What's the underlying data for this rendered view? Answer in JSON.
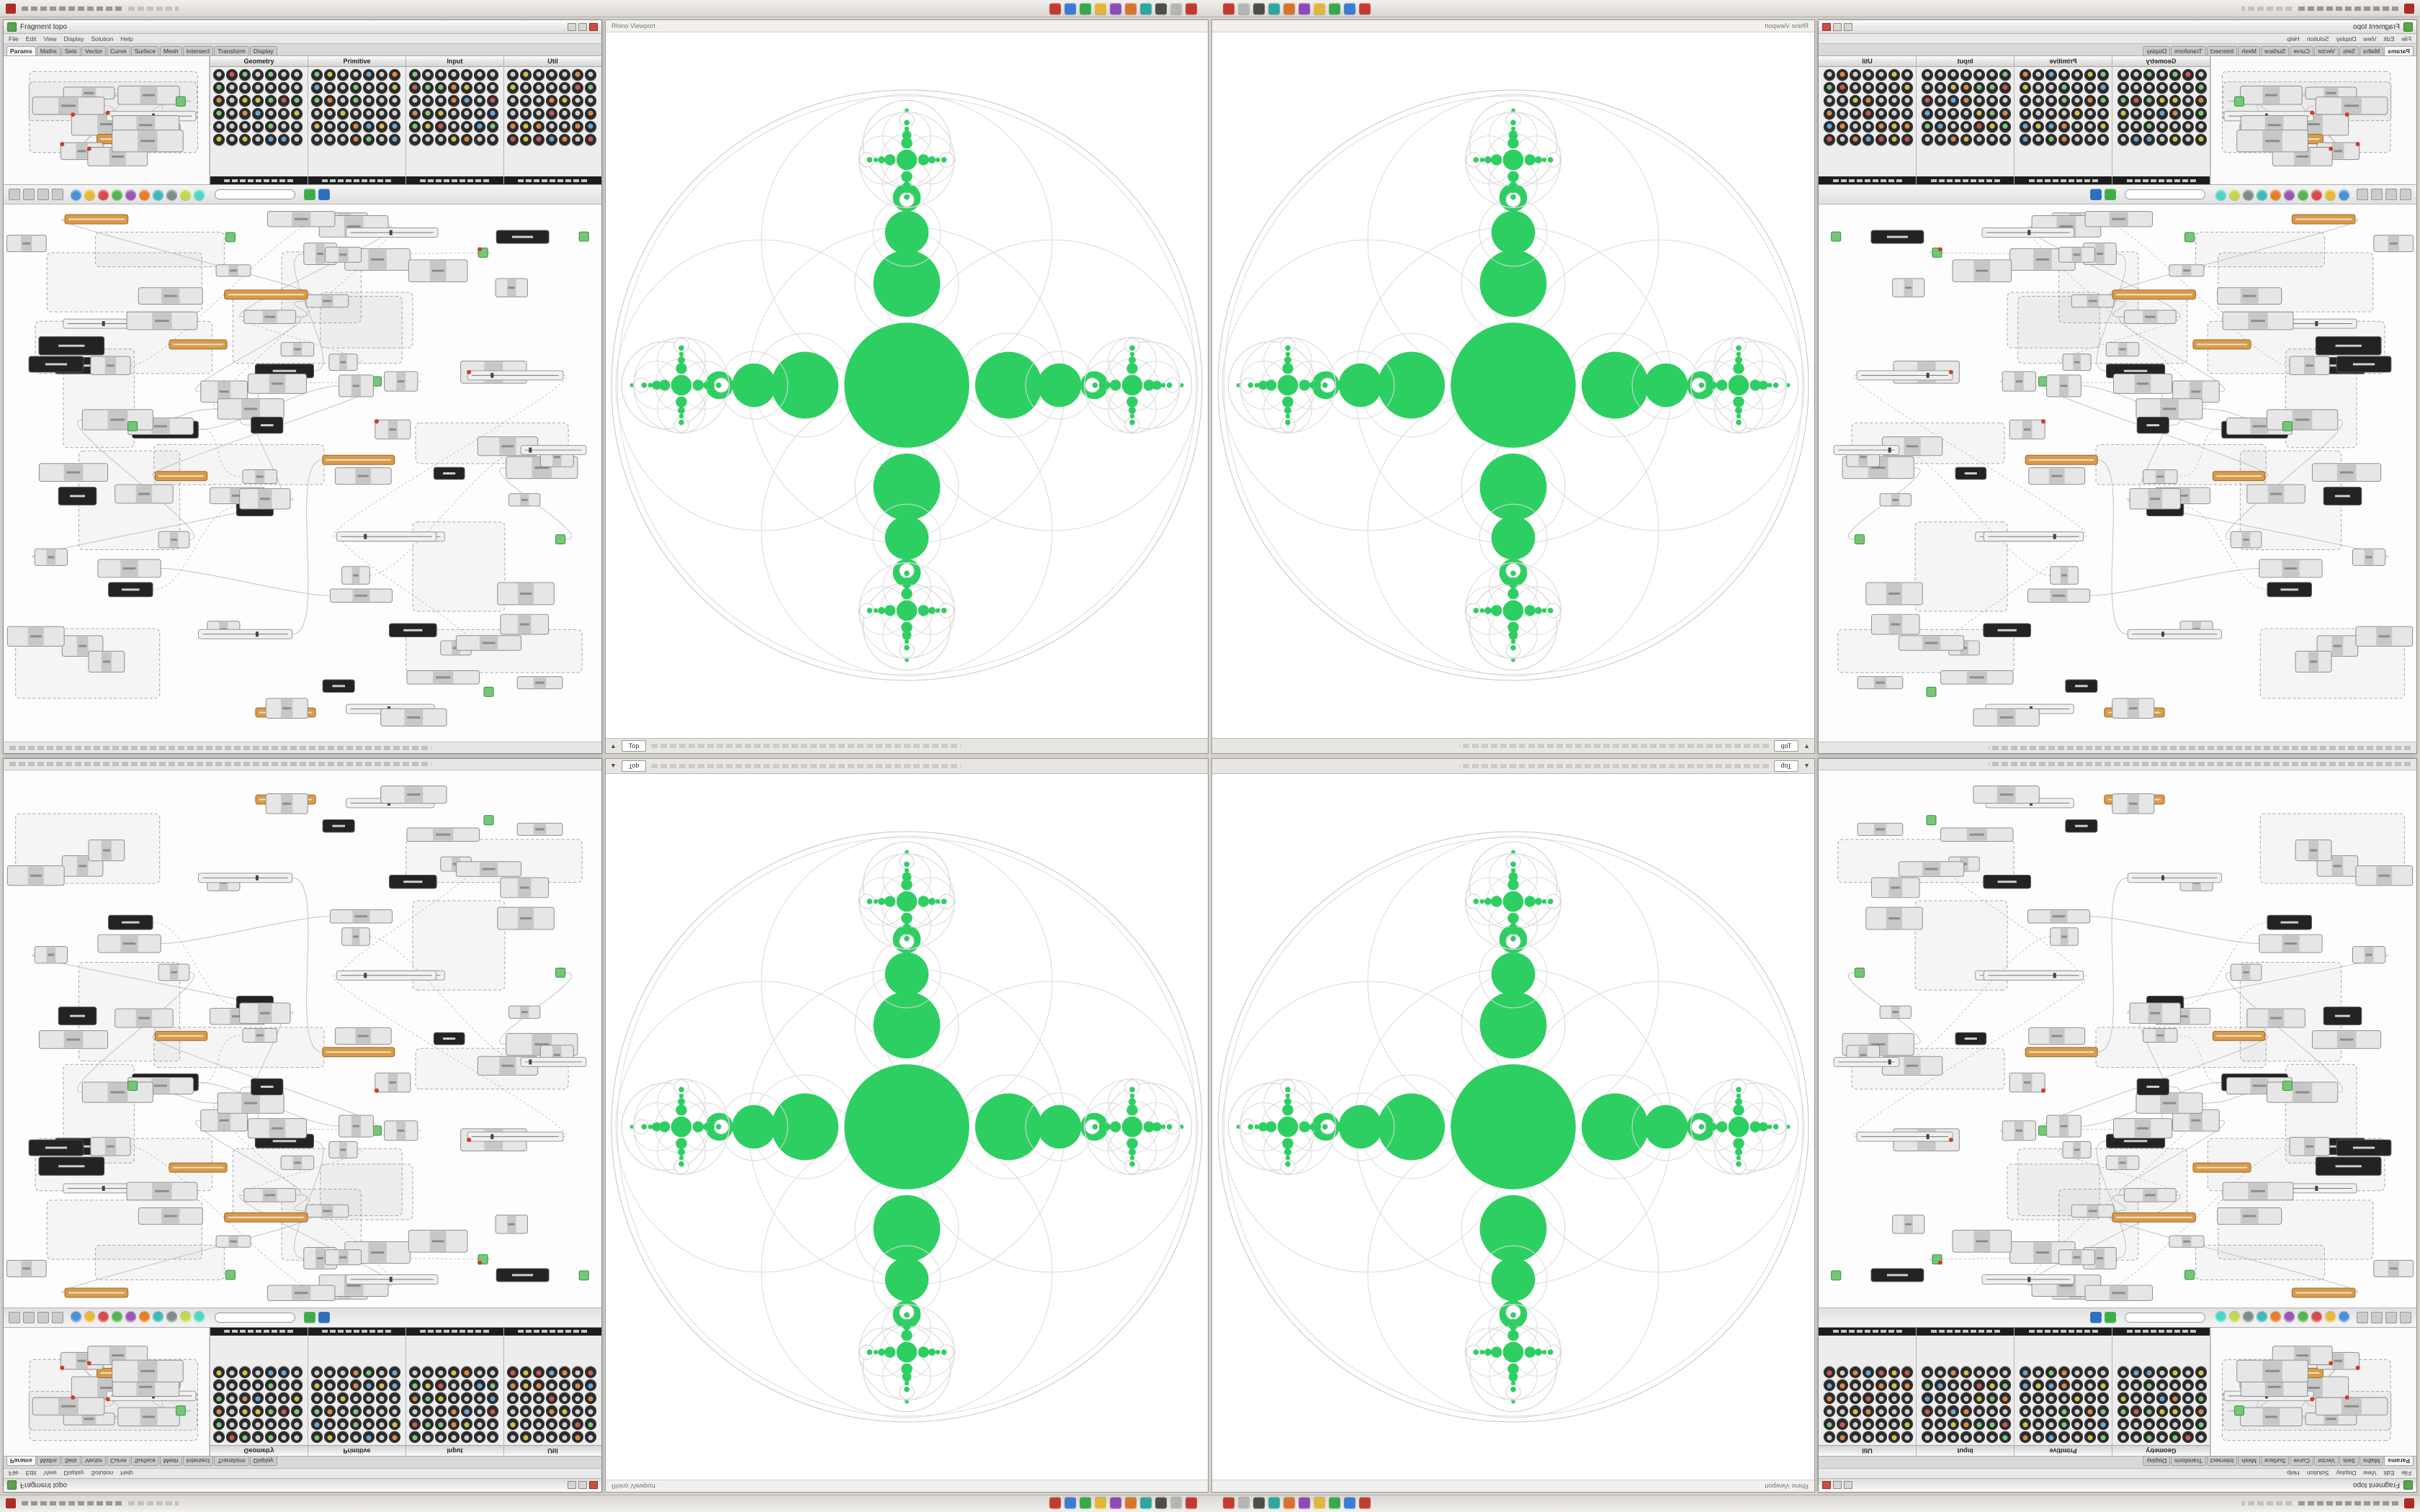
{
  "titlebar": {
    "taskbar_icons": [
      {
        "name": "taskbar-icon-red",
        "color": "#c23b2e"
      },
      {
        "name": "taskbar-icon-blue",
        "color": "#3a7bd5"
      },
      {
        "name": "taskbar-icon-green",
        "color": "#37a94c"
      },
      {
        "name": "taskbar-icon-yellow",
        "color": "#e3b53a"
      },
      {
        "name": "taskbar-icon-purple",
        "color": "#8e4bb8"
      },
      {
        "name": "taskbar-icon-orange",
        "color": "#d8732c"
      },
      {
        "name": "taskbar-icon-teal",
        "color": "#2fa6a0"
      },
      {
        "name": "taskbar-icon-dark",
        "color": "#4d4d4d"
      },
      {
        "name": "taskbar-icon-gray",
        "color": "#b5b5b5"
      },
      {
        "name": "taskbar-icon-close-red",
        "color": "#c23b2e"
      }
    ]
  },
  "gh_window": {
    "title": "Fragment topo",
    "menus": [
      "File",
      "Edit",
      "View",
      "Display",
      "Solution",
      "Help"
    ],
    "tabs": [
      {
        "label": "Params",
        "active": true
      },
      {
        "label": "Maths",
        "active": false
      },
      {
        "label": "Sets",
        "active": false
      },
      {
        "label": "Vector",
        "active": false
      },
      {
        "label": "Curve",
        "active": false
      },
      {
        "label": "Surface",
        "active": false
      },
      {
        "label": "Mesh",
        "active": false
      },
      {
        "label": "Intersect",
        "active": false
      },
      {
        "label": "Transform",
        "active": false
      },
      {
        "label": "Display",
        "active": false
      }
    ],
    "panels": [
      {
        "title": "Geometry"
      },
      {
        "title": "Primitive"
      },
      {
        "title": "Input"
      },
      {
        "title": "Util"
      }
    ],
    "toolbar": {
      "circle_icons": [
        "#4a90d9",
        "#e8b931",
        "#d94a4a",
        "#52b552",
        "#9b59b6",
        "#e67e22",
        "#3dbbbb",
        "#7f8c8d",
        "#c2d94a",
        "#4ad9c8"
      ],
      "square_icons": [
        "#3fae49",
        "#2d6fbd"
      ],
      "search_value": ""
    }
  },
  "viewport": {
    "title": "Rhino Viewport",
    "tab_label": "Top"
  },
  "fractal": {
    "green": "#2ecf62",
    "line": "#dadada",
    "outer_line": "#c4c4c4"
  },
  "canvas": {
    "node_fill": "#e6e6e6",
    "node_border": "#8f8f8f",
    "dark_node": "#232323",
    "orange_node": "#d89b4a",
    "green_node": "#74c776",
    "slider_fill": "#f0f0f0",
    "wire": "#b8b8b8",
    "group_border": "#a6a6a6",
    "error_red": "#d03b2f"
  }
}
